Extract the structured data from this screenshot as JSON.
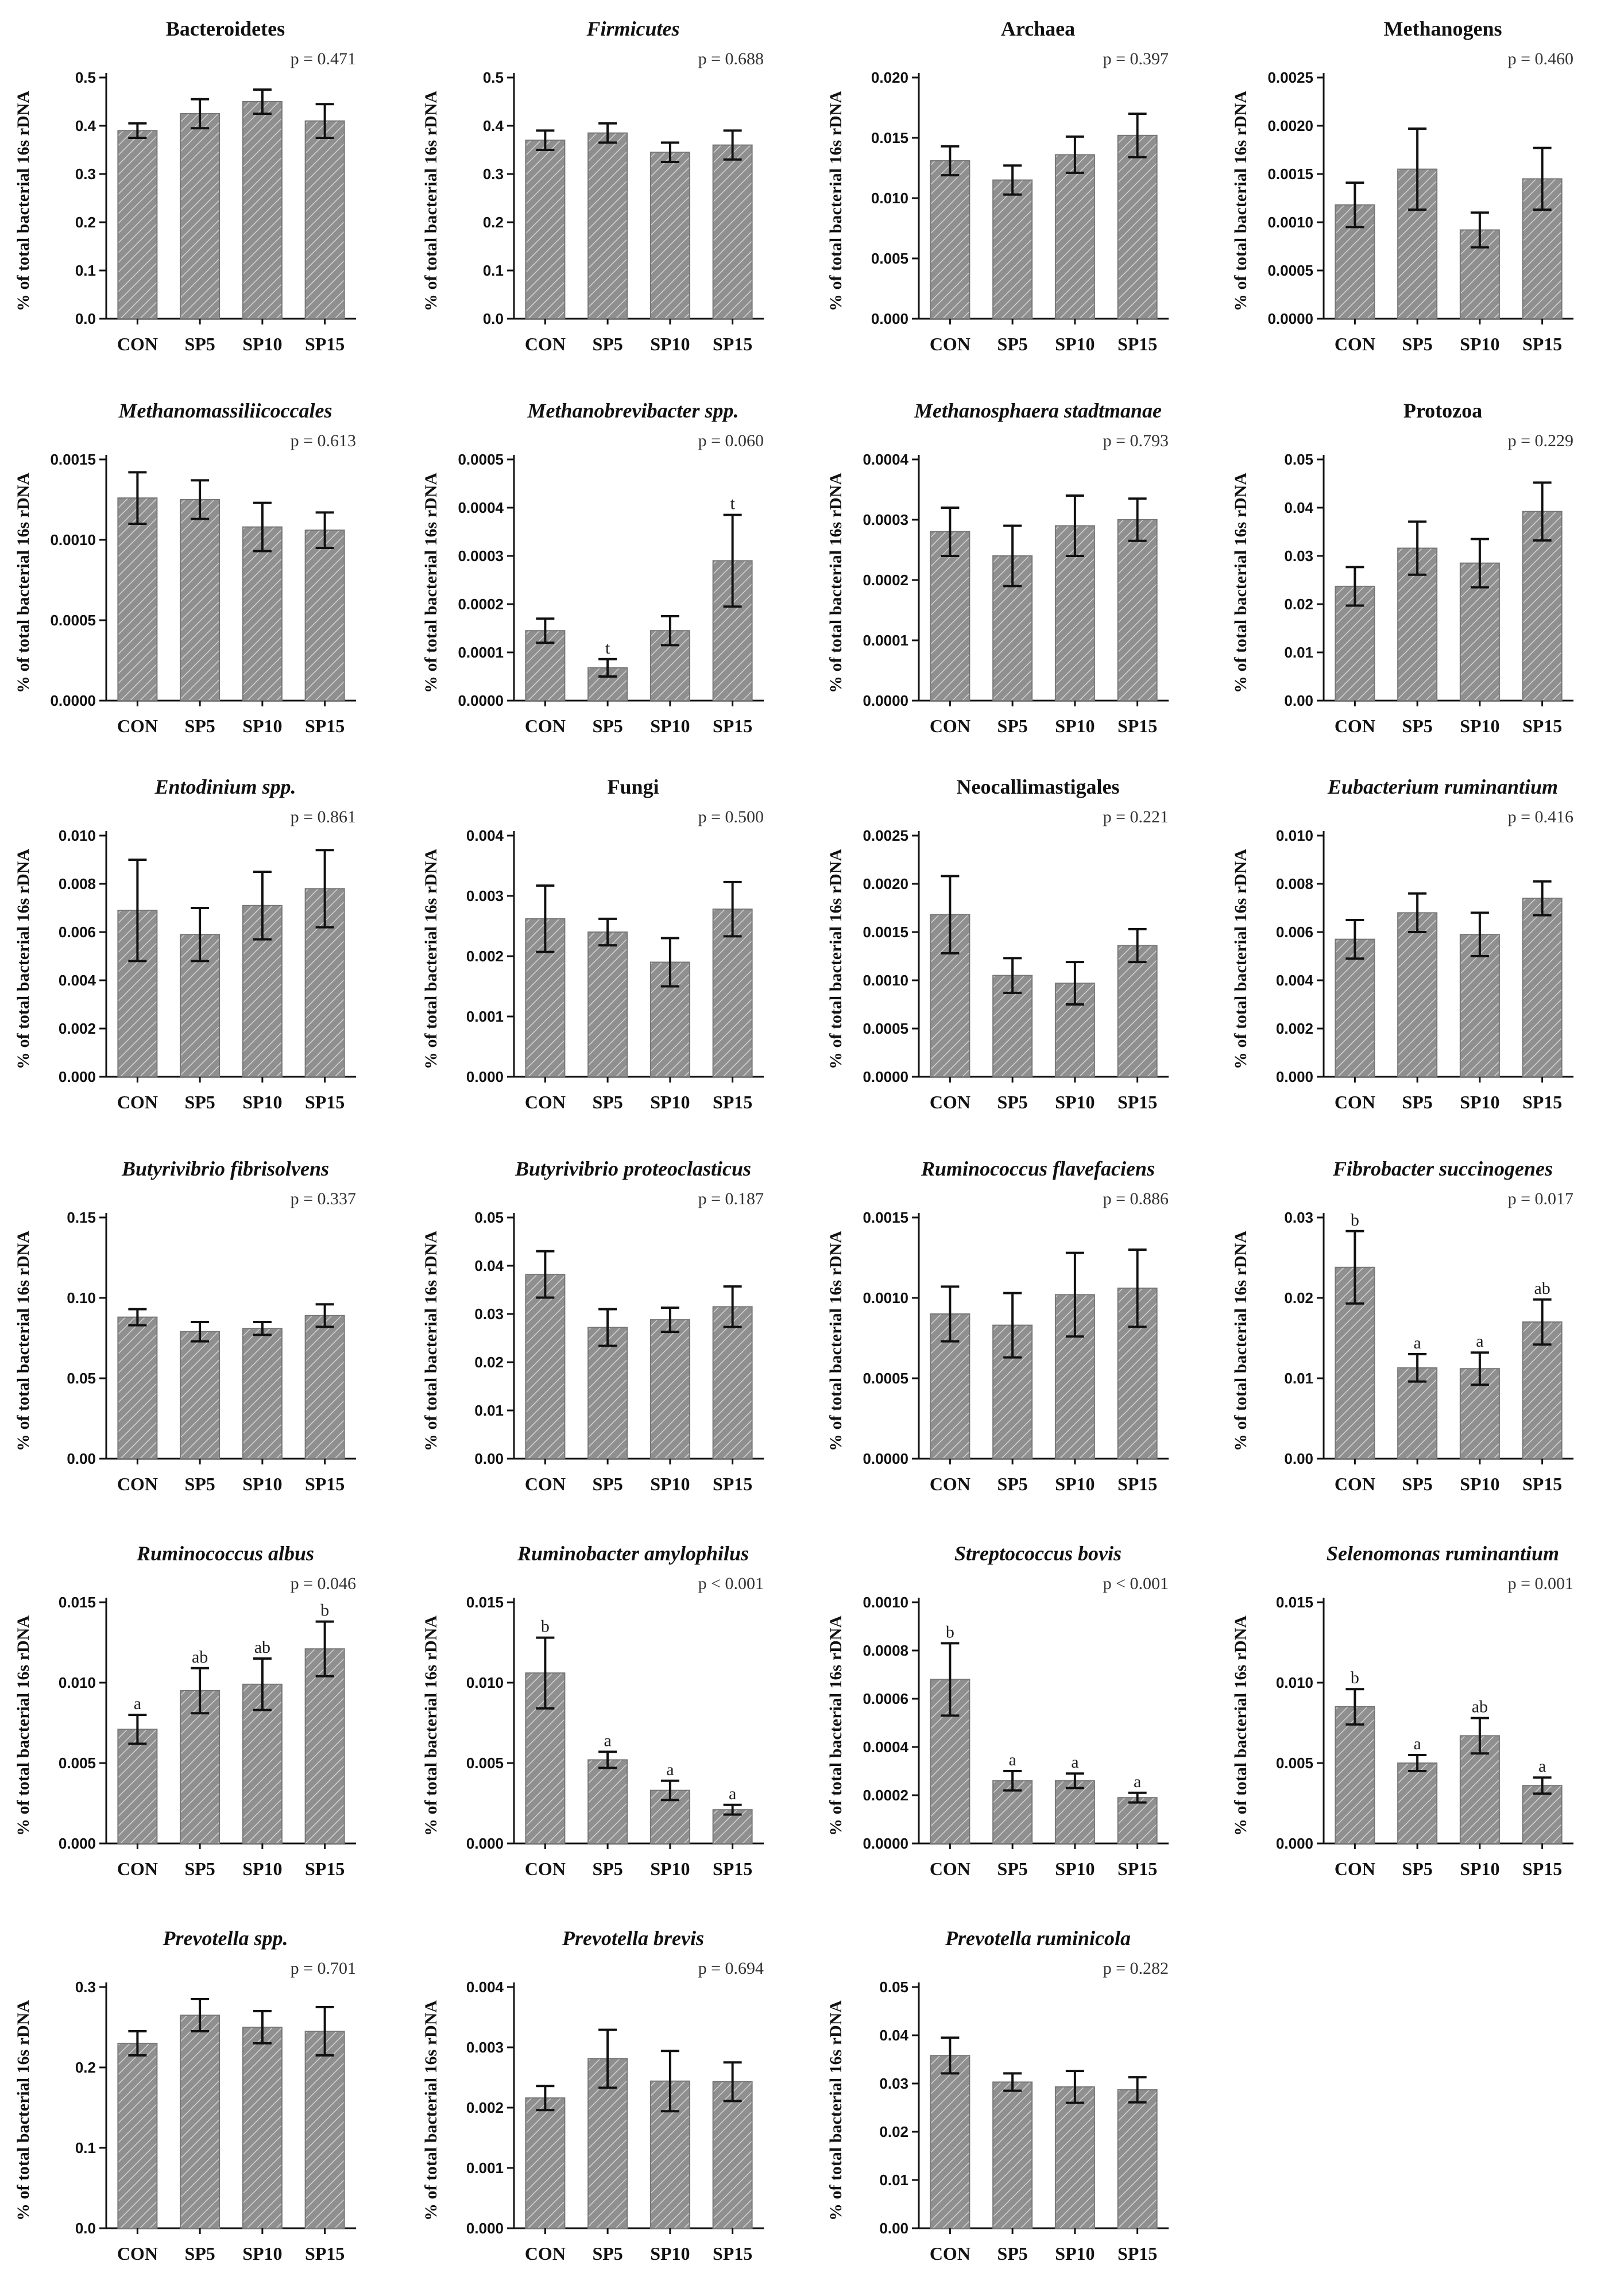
{
  "chart_data": [
    {
      "type": "bar",
      "title": "Bacteroidetes",
      "italic": false,
      "pvalue": "p = 0.471",
      "ylabel": "% of total bacterial 16s rDNA",
      "categories": [
        "CON",
        "SP5",
        "SP10",
        "SP15"
      ],
      "values": [
        0.39,
        0.425,
        0.45,
        0.41
      ],
      "errors": [
        0.015,
        0.03,
        0.025,
        0.035
      ],
      "letters": [
        "",
        "",
        "",
        ""
      ],
      "ylim": [
        0,
        0.5
      ],
      "yticks": [
        "0.0",
        "0.1",
        "0.2",
        "0.3",
        "0.4",
        "0.5"
      ]
    },
    {
      "type": "bar",
      "title": "Firmicutes",
      "italic": true,
      "pvalue": "p = 0.688",
      "ylabel": "% of total bacterial 16s rDNA",
      "categories": [
        "CON",
        "SP5",
        "SP10",
        "SP15"
      ],
      "values": [
        0.37,
        0.385,
        0.345,
        0.36
      ],
      "errors": [
        0.02,
        0.02,
        0.02,
        0.03
      ],
      "letters": [
        "",
        "",
        "",
        ""
      ],
      "ylim": [
        0,
        0.5
      ],
      "yticks": [
        "0.0",
        "0.1",
        "0.2",
        "0.3",
        "0.4",
        "0.5"
      ]
    },
    {
      "type": "bar",
      "title": "Archaea",
      "italic": false,
      "pvalue": "p = 0.397",
      "ylabel": "% of total bacterial 16s rDNA",
      "categories": [
        "CON",
        "SP5",
        "SP10",
        "SP15"
      ],
      "values": [
        0.0131,
        0.0115,
        0.0136,
        0.0152
      ],
      "errors": [
        0.0012,
        0.0012,
        0.0015,
        0.0018
      ],
      "letters": [
        "",
        "",
        "",
        ""
      ],
      "ylim": [
        0,
        0.02
      ],
      "yticks": [
        "0.000",
        "0.005",
        "0.010",
        "0.015",
        "0.020"
      ]
    },
    {
      "type": "bar",
      "title": "Methanogens",
      "italic": false,
      "pvalue": "p = 0.460",
      "ylabel": "% of total bacterial 16s rDNA",
      "categories": [
        "CON",
        "SP5",
        "SP10",
        "SP15"
      ],
      "values": [
        0.00118,
        0.00155,
        0.00092,
        0.00145
      ],
      "errors": [
        0.00023,
        0.00042,
        0.00018,
        0.00032
      ],
      "letters": [
        "",
        "",
        "",
        ""
      ],
      "ylim": [
        0,
        0.0025
      ],
      "yticks": [
        "0.0000",
        "0.0005",
        "0.0010",
        "0.0015",
        "0.0020",
        "0.0025"
      ]
    },
    {
      "type": "bar",
      "title": "Methanomassiliicoccales",
      "italic": true,
      "pvalue": "p = 0.613",
      "ylabel": "% of total bacterial 16s rDNA",
      "categories": [
        "CON",
        "SP5",
        "SP10",
        "SP15"
      ],
      "values": [
        0.00126,
        0.00125,
        0.00108,
        0.00106
      ],
      "errors": [
        0.00016,
        0.00012,
        0.00015,
        0.00011
      ],
      "letters": [
        "",
        "",
        "",
        ""
      ],
      "ylim": [
        0,
        0.0015
      ],
      "yticks": [
        "0.0000",
        "0.0005",
        "0.0010",
        "0.0015"
      ]
    },
    {
      "type": "bar",
      "title": "Methanobrevibacter spp.",
      "italic": true,
      "pvalue": "p = 0.060",
      "ylabel": "% of total bacterial 16s rDNA",
      "categories": [
        "CON",
        "SP5",
        "SP10",
        "SP15"
      ],
      "values": [
        0.000145,
        6.8e-05,
        0.000145,
        0.00029
      ],
      "errors": [
        2.5e-05,
        1.8e-05,
        3e-05,
        9.5e-05
      ],
      "letters": [
        "",
        "t",
        "",
        "t"
      ],
      "ylim": [
        0,
        0.0005
      ],
      "yticks": [
        "0.0000",
        "0.0001",
        "0.0002",
        "0.0003",
        "0.0004",
        "0.0005"
      ]
    },
    {
      "type": "bar",
      "title": "Methanosphaera stadtmanae",
      "italic": true,
      "pvalue": "p = 0.793",
      "ylabel": "% of total bacterial 16s rDNA",
      "categories": [
        "CON",
        "SP5",
        "SP10",
        "SP15"
      ],
      "values": [
        0.00028,
        0.00024,
        0.00029,
        0.0003
      ],
      "errors": [
        4e-05,
        5e-05,
        5e-05,
        3.5e-05
      ],
      "letters": [
        "",
        "",
        "",
        ""
      ],
      "ylim": [
        0,
        0.0004
      ],
      "yticks": [
        "0.0000",
        "0.0001",
        "0.0002",
        "0.0003",
        "0.0004"
      ]
    },
    {
      "type": "bar",
      "title": "Protozoa",
      "italic": false,
      "pvalue": "p = 0.229",
      "ylabel": "% of total bacterial 16s rDNA",
      "categories": [
        "CON",
        "SP5",
        "SP10",
        "SP15"
      ],
      "values": [
        0.0237,
        0.0316,
        0.0285,
        0.0392
      ],
      "errors": [
        0.004,
        0.0055,
        0.005,
        0.006
      ],
      "letters": [
        "",
        "",
        "",
        ""
      ],
      "ylim": [
        0,
        0.05
      ],
      "yticks": [
        "0.00",
        "0.01",
        "0.02",
        "0.03",
        "0.04",
        "0.05"
      ]
    },
    {
      "type": "bar",
      "title": "Entodinium spp.",
      "italic": true,
      "pvalue": "p = 0.861",
      "ylabel": "% of total bacterial 16s rDNA",
      "categories": [
        "CON",
        "SP5",
        "SP10",
        "SP15"
      ],
      "values": [
        0.0069,
        0.0059,
        0.0071,
        0.0078
      ],
      "errors": [
        0.0021,
        0.0011,
        0.0014,
        0.0016
      ],
      "letters": [
        "",
        "",
        "",
        ""
      ],
      "ylim": [
        0,
        0.01
      ],
      "yticks": [
        "0.000",
        "0.002",
        "0.004",
        "0.006",
        "0.008",
        "0.010"
      ]
    },
    {
      "type": "bar",
      "title": "Fungi",
      "italic": false,
      "pvalue": "p = 0.500",
      "ylabel": "% of total bacterial 16s rDNA",
      "categories": [
        "CON",
        "SP5",
        "SP10",
        "SP15"
      ],
      "values": [
        0.00262,
        0.0024,
        0.0019,
        0.00278
      ],
      "errors": [
        0.00055,
        0.00022,
        0.0004,
        0.00045
      ],
      "letters": [
        "",
        "",
        "",
        ""
      ],
      "ylim": [
        0,
        0.004
      ],
      "yticks": [
        "0.000",
        "0.001",
        "0.002",
        "0.003",
        "0.004"
      ]
    },
    {
      "type": "bar",
      "title": "Neocallimastigales",
      "italic": false,
      "pvalue": "p = 0.221",
      "ylabel": "% of total bacterial 16s rDNA",
      "categories": [
        "CON",
        "SP5",
        "SP10",
        "SP15"
      ],
      "values": [
        0.00168,
        0.00105,
        0.00097,
        0.00136
      ],
      "errors": [
        0.0004,
        0.00018,
        0.00022,
        0.00017
      ],
      "letters": [
        "",
        "",
        "",
        ""
      ],
      "ylim": [
        0,
        0.0025
      ],
      "yticks": [
        "0.0000",
        "0.0005",
        "0.0010",
        "0.0015",
        "0.0020",
        "0.0025"
      ]
    },
    {
      "type": "bar",
      "title": "Eubacterium ruminantium",
      "italic": true,
      "pvalue": "p = 0.416",
      "ylabel": "% of total bacterial 16s rDNA",
      "categories": [
        "CON",
        "SP5",
        "SP10",
        "SP15"
      ],
      "values": [
        0.0057,
        0.0068,
        0.0059,
        0.0074
      ],
      "errors": [
        0.0008,
        0.0008,
        0.0009,
        0.0007
      ],
      "letters": [
        "",
        "",
        "",
        ""
      ],
      "ylim": [
        0,
        0.01
      ],
      "yticks": [
        "0.000",
        "0.002",
        "0.004",
        "0.006",
        "0.008",
        "0.010"
      ]
    },
    {
      "type": "bar",
      "title": "Butyrivibrio fibrisolvens",
      "italic": true,
      "pvalue": "p = 0.337",
      "ylabel": "% of total bacterial 16s rDNA",
      "categories": [
        "CON",
        "SP5",
        "SP10",
        "SP15"
      ],
      "values": [
        0.088,
        0.079,
        0.081,
        0.089
      ],
      "errors": [
        0.005,
        0.006,
        0.004,
        0.007
      ],
      "letters": [
        "",
        "",
        "",
        ""
      ],
      "ylim": [
        0,
        0.15
      ],
      "yticks": [
        "0.00",
        "0.05",
        "0.10",
        "0.15"
      ]
    },
    {
      "type": "bar",
      "title": "Butyrivibrio proteoclasticus",
      "italic": true,
      "pvalue": "p = 0.187",
      "ylabel": "% of total bacterial 16s rDNA",
      "categories": [
        "CON",
        "SP5",
        "SP10",
        "SP15"
      ],
      "values": [
        0.0382,
        0.0272,
        0.0288,
        0.0315
      ],
      "errors": [
        0.0048,
        0.0038,
        0.0025,
        0.0042
      ],
      "letters": [
        "",
        "",
        "",
        ""
      ],
      "ylim": [
        0,
        0.05
      ],
      "yticks": [
        "0.00",
        "0.01",
        "0.02",
        "0.03",
        "0.04",
        "0.05"
      ]
    },
    {
      "type": "bar",
      "title": "Ruminococcus flavefaciens",
      "italic": true,
      "pvalue": "p = 0.886",
      "ylabel": "% of total bacterial 16s rDNA",
      "categories": [
        "CON",
        "SP5",
        "SP10",
        "SP15"
      ],
      "values": [
        0.0009,
        0.00083,
        0.00102,
        0.00106
      ],
      "errors": [
        0.00017,
        0.0002,
        0.00026,
        0.00024
      ],
      "letters": [
        "",
        "",
        "",
        ""
      ],
      "ylim": [
        0,
        0.0015
      ],
      "yticks": [
        "0.0000",
        "0.0005",
        "0.0010",
        "0.0015"
      ]
    },
    {
      "type": "bar",
      "title": "Fibrobacter succinogenes",
      "italic": true,
      "pvalue": "p = 0.017",
      "ylabel": "% of total bacterial 16s rDNA",
      "categories": [
        "CON",
        "SP5",
        "SP10",
        "SP15"
      ],
      "values": [
        0.0238,
        0.0113,
        0.0112,
        0.017
      ],
      "errors": [
        0.0045,
        0.0017,
        0.002,
        0.0028
      ],
      "letters": [
        "b",
        "a",
        "a",
        "ab"
      ],
      "ylim": [
        0,
        0.03
      ],
      "yticks": [
        "0.00",
        "0.01",
        "0.02",
        "0.03"
      ]
    },
    {
      "type": "bar",
      "title": "Ruminococcus albus",
      "italic": true,
      "pvalue": "p = 0.046",
      "ylabel": "% of total bacterial 16s rDNA",
      "categories": [
        "CON",
        "SP5",
        "SP10",
        "SP15"
      ],
      "values": [
        0.0071,
        0.0095,
        0.0099,
        0.0121
      ],
      "errors": [
        0.0009,
        0.0014,
        0.0016,
        0.0017
      ],
      "letters": [
        "a",
        "ab",
        "ab",
        "b"
      ],
      "ylim": [
        0,
        0.015
      ],
      "yticks": [
        "0.000",
        "0.005",
        "0.010",
        "0.015"
      ]
    },
    {
      "type": "bar",
      "title": "Ruminobacter amylophilus",
      "italic": true,
      "pvalue": "p < 0.001",
      "ylabel": "% of total bacterial 16s rDNA",
      "categories": [
        "CON",
        "SP5",
        "SP10",
        "SP15"
      ],
      "values": [
        0.0106,
        0.0052,
        0.0033,
        0.0021
      ],
      "errors": [
        0.0022,
        0.0005,
        0.0006,
        0.0003
      ],
      "letters": [
        "b",
        "a",
        "a",
        "a"
      ],
      "ylim": [
        0,
        0.015
      ],
      "yticks": [
        "0.000",
        "0.005",
        "0.010",
        "0.015"
      ]
    },
    {
      "type": "bar",
      "title": "Streptococcus bovis",
      "italic": true,
      "pvalue": "p < 0.001",
      "ylabel": "% of total bacterial 16s rDNA",
      "categories": [
        "CON",
        "SP5",
        "SP10",
        "SP15"
      ],
      "values": [
        0.00068,
        0.00026,
        0.00026,
        0.00019
      ],
      "errors": [
        0.00015,
        4e-05,
        3e-05,
        2e-05
      ],
      "letters": [
        "b",
        "a",
        "a",
        "a"
      ],
      "ylim": [
        0,
        0.001
      ],
      "yticks": [
        "0.0000",
        "0.0002",
        "0.0004",
        "0.0006",
        "0.0008",
        "0.0010"
      ]
    },
    {
      "type": "bar",
      "title": "Selenomonas ruminantium",
      "italic": true,
      "pvalue": "p = 0.001",
      "ylabel": "% of total bacterial 16s rDNA",
      "categories": [
        "CON",
        "SP5",
        "SP10",
        "SP15"
      ],
      "values": [
        0.0085,
        0.005,
        0.0067,
        0.0036
      ],
      "errors": [
        0.0011,
        0.0005,
        0.0011,
        0.0005
      ],
      "letters": [
        "b",
        "a",
        "ab",
        "a"
      ],
      "ylim": [
        0,
        0.015
      ],
      "yticks": [
        "0.000",
        "0.005",
        "0.010",
        "0.015"
      ]
    },
    {
      "type": "bar",
      "title": "Prevotella spp.",
      "italic": true,
      "pvalue": "p = 0.701",
      "ylabel": "% of total bacterial 16s rDNA",
      "categories": [
        "CON",
        "SP5",
        "SP10",
        "SP15"
      ],
      "values": [
        0.23,
        0.265,
        0.25,
        0.245
      ],
      "errors": [
        0.015,
        0.02,
        0.02,
        0.03
      ],
      "letters": [
        "",
        "",
        "",
        ""
      ],
      "ylim": [
        0,
        0.3
      ],
      "yticks": [
        "0.0",
        "0.1",
        "0.2",
        "0.3"
      ]
    },
    {
      "type": "bar",
      "title": "Prevotella brevis",
      "italic": true,
      "pvalue": "p = 0.694",
      "ylabel": "% of total bacterial 16s rDNA",
      "categories": [
        "CON",
        "SP5",
        "SP10",
        "SP15"
      ],
      "values": [
        0.00216,
        0.00281,
        0.00244,
        0.00243
      ],
      "errors": [
        0.0002,
        0.00048,
        0.0005,
        0.00032
      ],
      "letters": [
        "",
        "",
        "",
        ""
      ],
      "ylim": [
        0,
        0.004
      ],
      "yticks": [
        "0.000",
        "0.001",
        "0.002",
        "0.003",
        "0.004"
      ]
    },
    {
      "type": "bar",
      "title": "Prevotella ruminicola",
      "italic": true,
      "pvalue": "p = 0.282",
      "ylabel": "% of total bacterial 16s rDNA",
      "categories": [
        "CON",
        "SP5",
        "SP10",
        "SP15"
      ],
      "values": [
        0.0358,
        0.0303,
        0.0293,
        0.0287
      ],
      "errors": [
        0.0037,
        0.0018,
        0.0033,
        0.0026
      ],
      "letters": [
        "",
        "",
        "",
        ""
      ],
      "ylim": [
        0,
        0.05
      ],
      "yticks": [
        "0.00",
        "0.01",
        "0.02",
        "0.03",
        "0.04",
        "0.05"
      ]
    }
  ]
}
